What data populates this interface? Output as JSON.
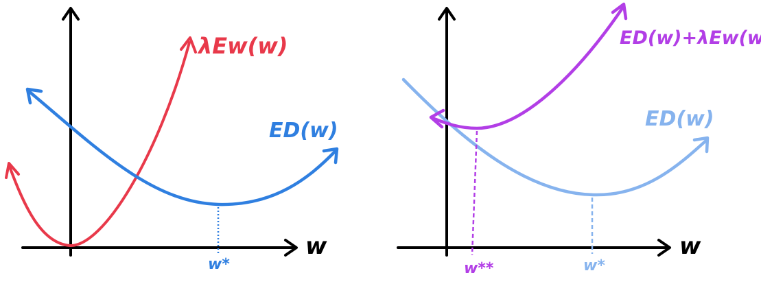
{
  "colors": {
    "axis": "#000000",
    "red": "#e8394a",
    "blue": "#2f7fe0",
    "light_blue": "#86b3ee",
    "purple": "#b23ee6",
    "background": "#ffffff"
  },
  "left_panel": {
    "axis_label": "w",
    "curve_reg_label": "λEw(w)",
    "curve_data_label": "ED(w)",
    "min_label": "w*"
  },
  "right_panel": {
    "axis_label": "w",
    "curve_total_label": "ED(w)+λEw(w)",
    "curve_data_label": "ED(w)",
    "min_total_label": "w**",
    "min_data_label": "w*"
  }
}
